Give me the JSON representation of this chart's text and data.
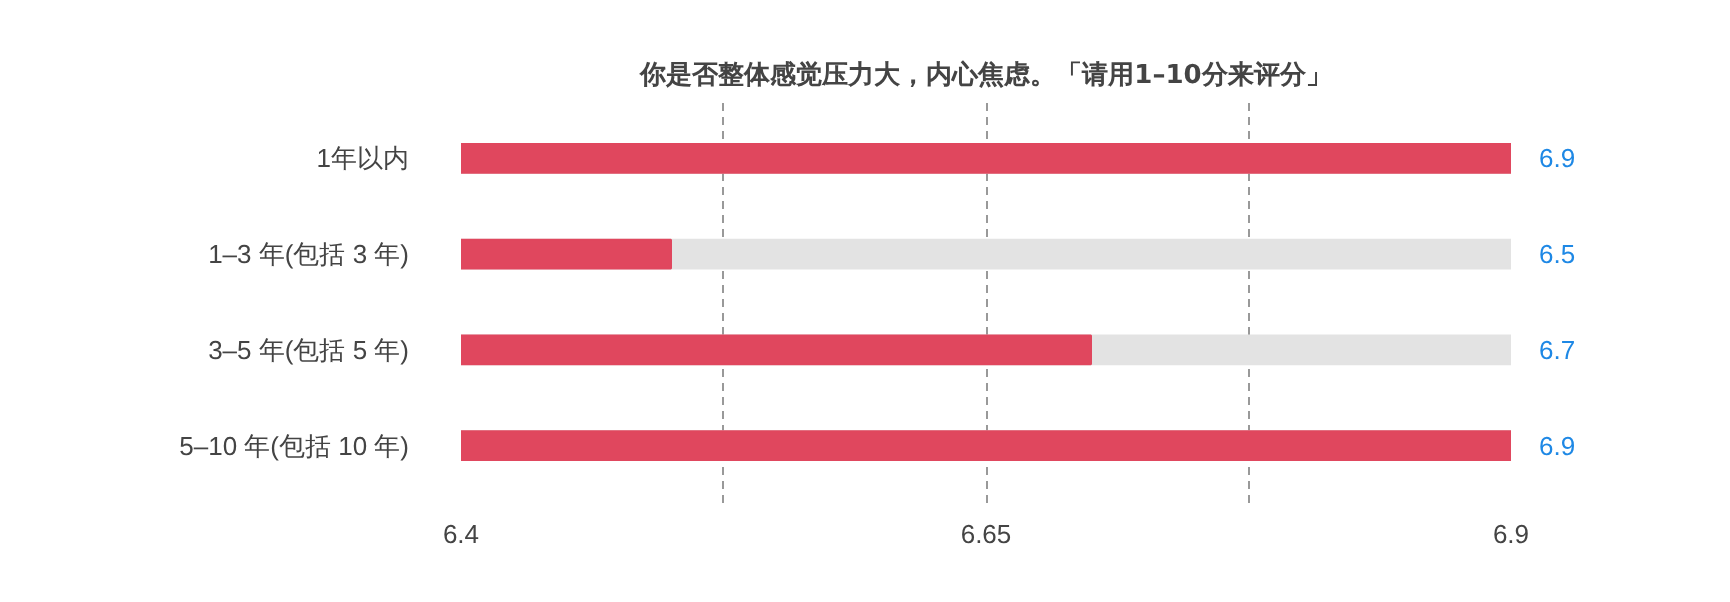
{
  "chart_data": {
    "type": "bar",
    "orientation": "horizontal",
    "title": "你是否整体感觉压力大，内心焦虑。「请用1–10分来评分」",
    "categories": [
      "1年以内",
      "1–3 年(包括 3 年)",
      "3–5 年(包括 5 年)",
      "5–10 年(包括 10 年)"
    ],
    "values": [
      6.9,
      6.5,
      6.7,
      6.9
    ],
    "color": "#e0475e",
    "xlim": [
      6.4,
      6.9
    ],
    "xticks": [
      6.4,
      {
        "value": 6.525,
        "label": null
      },
      6.65,
      {
        "value": 6.775,
        "label": null
      },
      6.9
    ],
    "grid": "x",
    "data_labels": true
  }
}
